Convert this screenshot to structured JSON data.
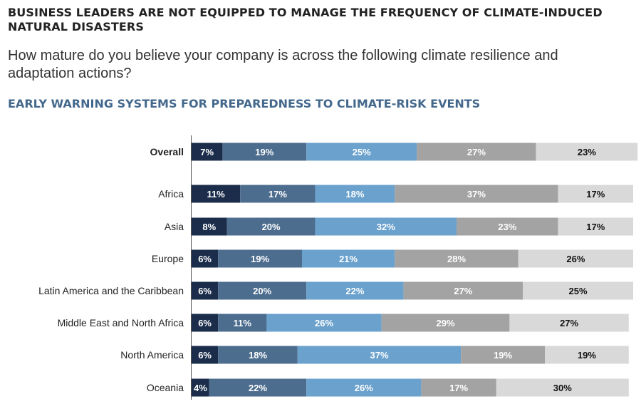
{
  "header": {
    "title": "BUSINESS LEADERS ARE NOT EQUIPPED TO MANAGE THE FREQUENCY OF CLIMATE-INDUCED NATURAL DISASTERS",
    "question": "How mature do you believe your company is across the following climate resilience and adaptation actions?"
  },
  "chart_data": {
    "type": "bar",
    "orientation": "horizontal",
    "stacked": true,
    "title": "EARLY WARNING SYSTEMS FOR PREPAREDNESS TO CLIMATE-RISK EVENTS",
    "categories": [
      "Overall",
      "Africa",
      "Asia",
      "Europe",
      "Latin America and the Caribbean",
      "Middle East and North Africa",
      "North America",
      "Oceania"
    ],
    "value_suffix": "%",
    "colors": [
      "#1b2d4b",
      "#4d6d8f",
      "#6aa1cd",
      "#a3a3a3",
      "#d9d9d9"
    ],
    "label_colors": [
      "#ffffff",
      "#ffffff",
      "#ffffff",
      "#ffffff",
      "#111111"
    ],
    "series": [
      {
        "values": [
          7,
          11,
          8,
          6,
          6,
          6,
          6,
          4
        ]
      },
      {
        "values": [
          19,
          17,
          20,
          19,
          20,
          11,
          18,
          22
        ]
      },
      {
        "values": [
          25,
          18,
          32,
          21,
          22,
          26,
          37,
          26
        ]
      },
      {
        "values": [
          27,
          37,
          23,
          28,
          27,
          29,
          19,
          17
        ]
      },
      {
        "values": [
          23,
          17,
          17,
          26,
          25,
          27,
          19,
          30
        ]
      }
    ],
    "legend": false,
    "grid": false
  }
}
